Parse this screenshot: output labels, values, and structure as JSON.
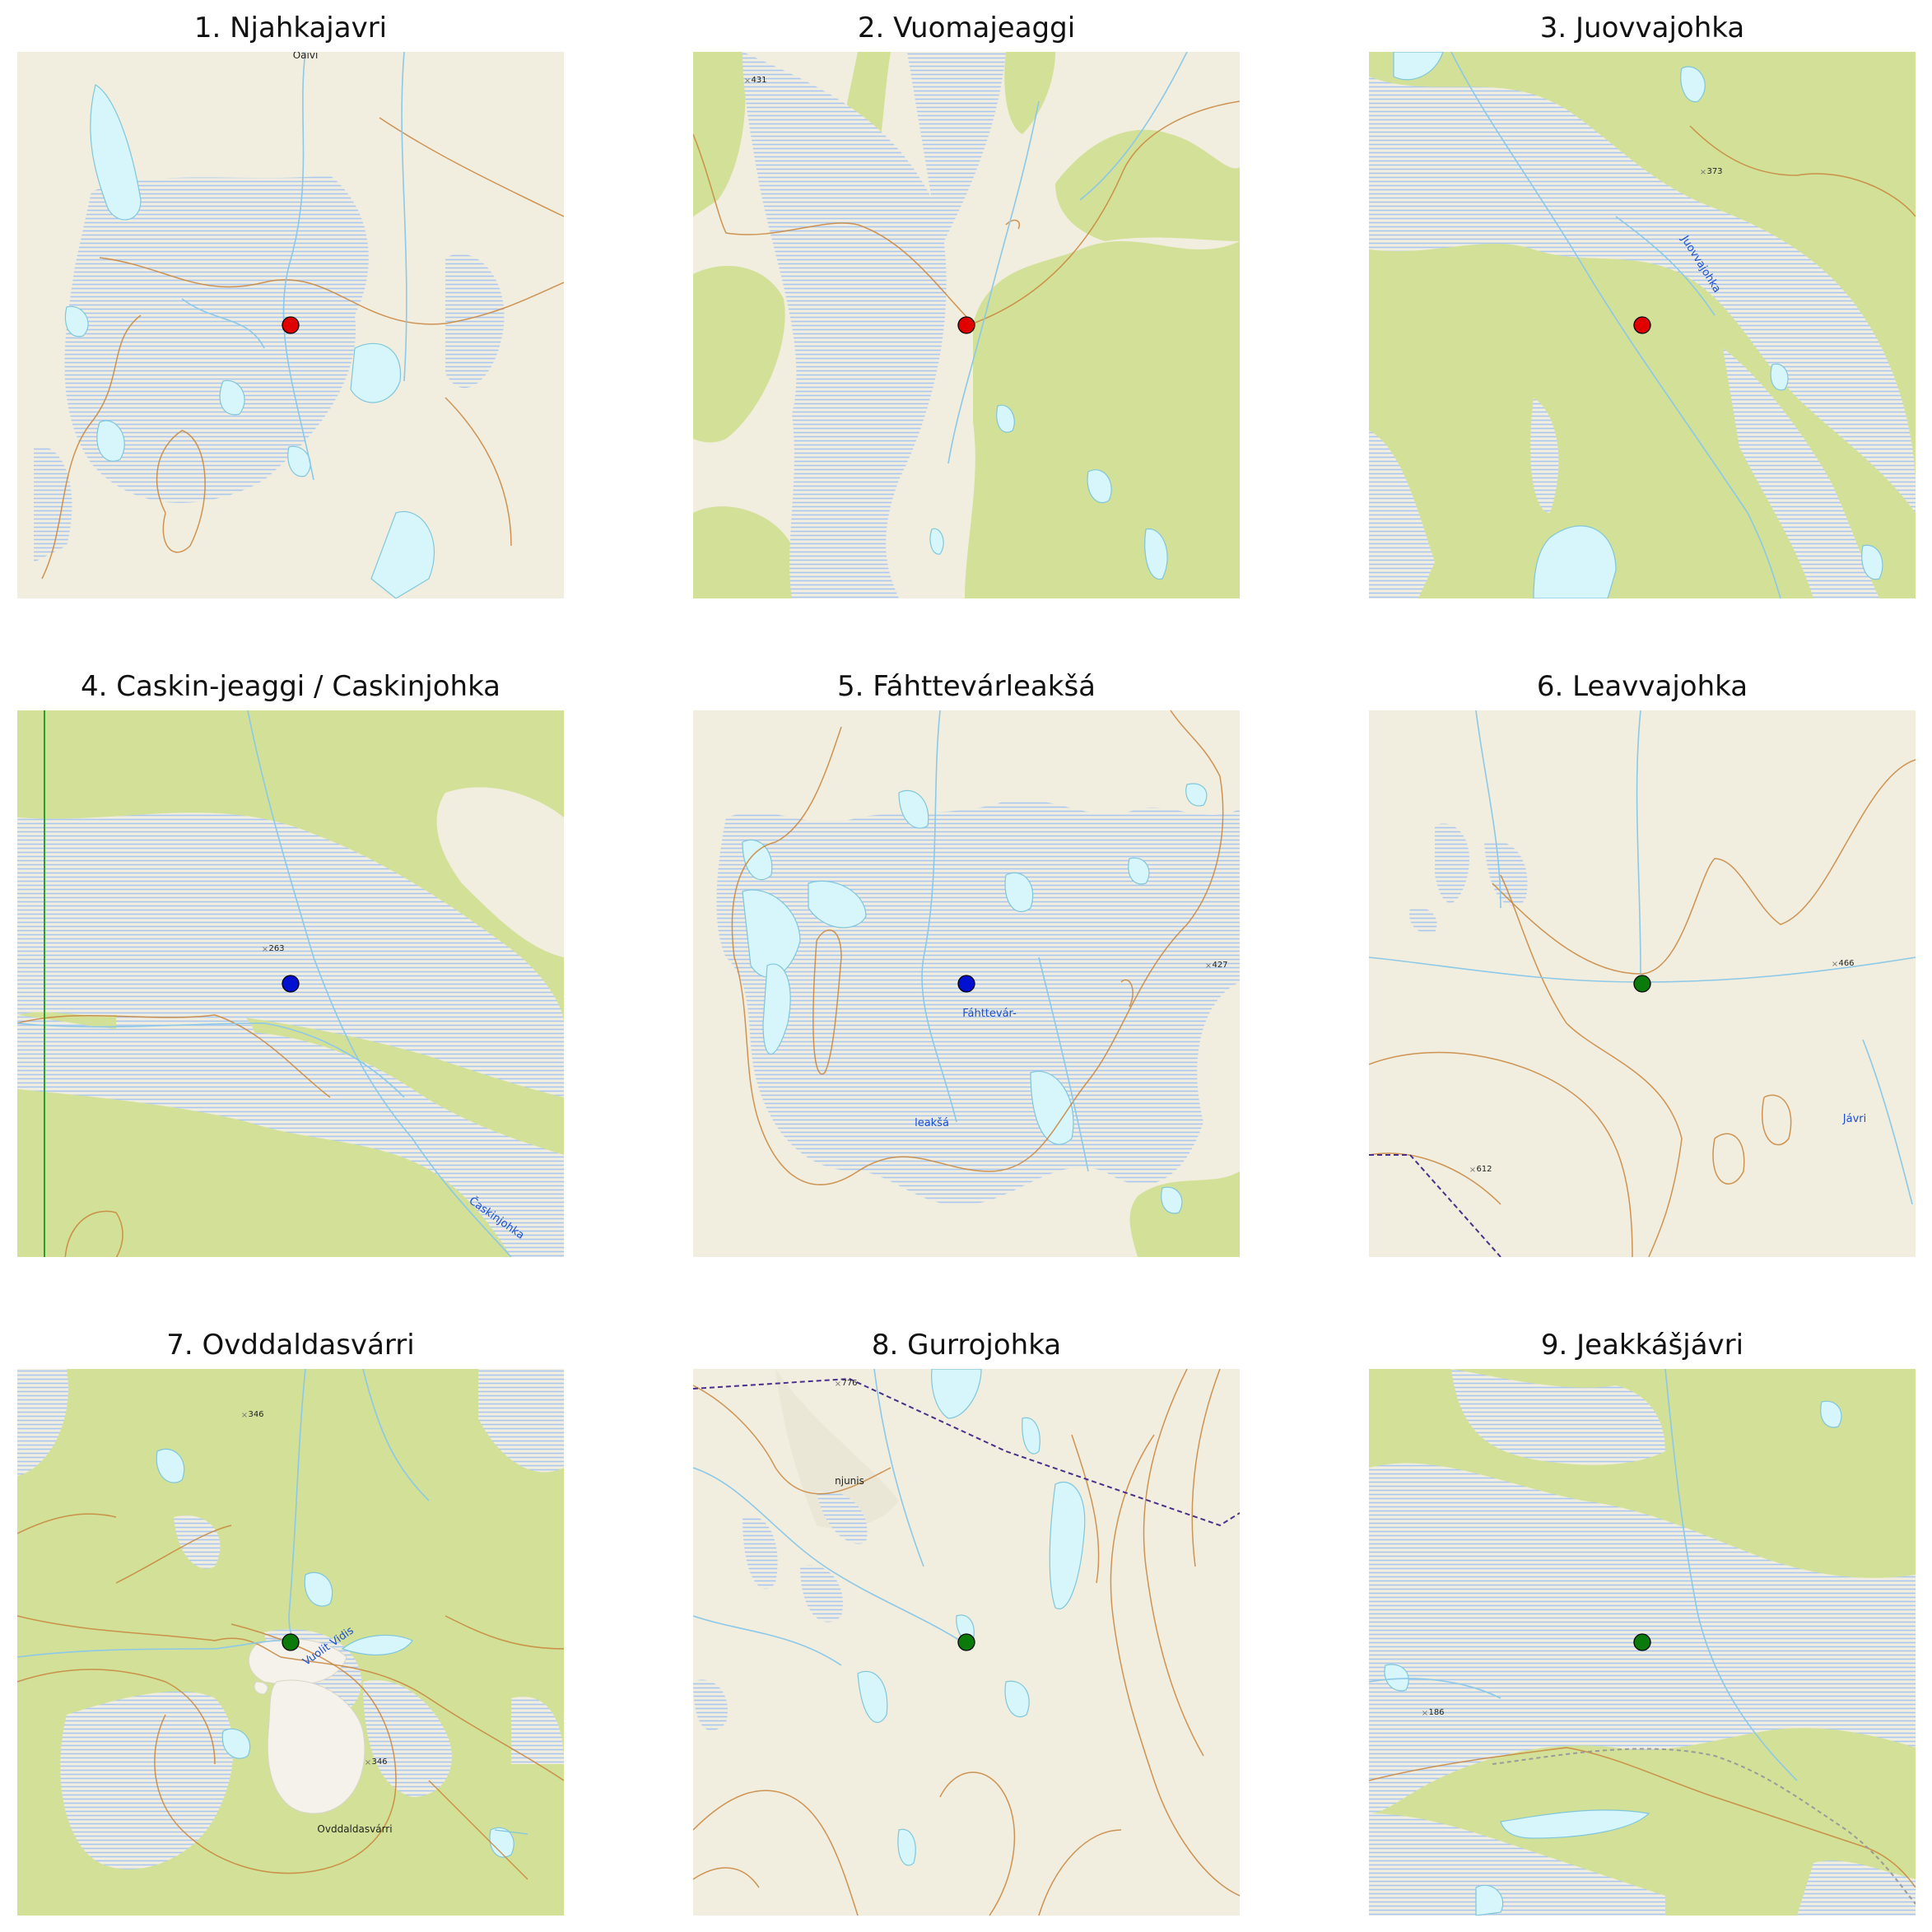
{
  "figure": {
    "marker_colors": {
      "red": "#e00000",
      "blue": "#0010d0",
      "green": "#0a7a0a"
    },
    "map_colors": {
      "open": "#f1eedf",
      "forest": "#d3e098",
      "water": "#d6f6fb",
      "bog": "#a9c7ef",
      "contour": "#c8823a",
      "stream": "#8cc8e8",
      "boundary": "#4a2f8a",
      "place_text": "#1a4fd0"
    }
  },
  "panels": [
    {
      "title": "1. Njahkajavri",
      "marker": "red",
      "base": "open",
      "labels": [
        {
          "text": "Oaivi",
          "kind": "black",
          "where": "top"
        }
      ]
    },
    {
      "title": "2. Vuomajeaggi",
      "marker": "red",
      "base": "open",
      "labels": [
        {
          "text": "431",
          "kind": "height",
          "where": "top-left"
        }
      ]
    },
    {
      "title": "3. Juovvajohka",
      "marker": "red",
      "base": "forest",
      "labels": [
        {
          "text": "373",
          "kind": "height",
          "where": "top-right"
        },
        {
          "text": "Juovvajohka",
          "kind": "blue",
          "where": "right"
        }
      ]
    },
    {
      "title": "4. Caskin-jeaggi / Caskinjohka",
      "marker": "blue",
      "base": "forest",
      "labels": [
        {
          "text": "263",
          "kind": "height",
          "where": "center"
        },
        {
          "text": "Časkinjohka",
          "kind": "blue",
          "where": "bottom-right"
        }
      ]
    },
    {
      "title": "5. Fáhttevárleakšá",
      "marker": "blue",
      "base": "open",
      "labels": [
        {
          "text": "427",
          "kind": "height",
          "where": "right"
        },
        {
          "text": "Fáhttevár-",
          "kind": "blue",
          "where": "center"
        },
        {
          "text": "leakšá",
          "kind": "blue",
          "where": "bottom-left"
        }
      ]
    },
    {
      "title": "6. Leavvajohka",
      "marker": "green",
      "base": "open",
      "labels": [
        {
          "text": "466",
          "kind": "height",
          "where": "right"
        },
        {
          "text": "Jávri",
          "kind": "blue",
          "where": "bottom-right"
        },
        {
          "text": "612",
          "kind": "height",
          "where": "bottom-left"
        }
      ]
    },
    {
      "title": "7. Ovddaldasvárri",
      "marker": "green",
      "base": "forest",
      "labels": [
        {
          "text": "346",
          "kind": "height",
          "where": "top-left"
        },
        {
          "text": "Vuolit Vidis",
          "kind": "blue",
          "where": "center"
        },
        {
          "text": "346",
          "kind": "height",
          "where": "bottom"
        },
        {
          "text": "Ovddaldasvárri",
          "kind": "black",
          "where": "bottom"
        }
      ]
    },
    {
      "title": "8. Gurrojohka",
      "marker": "green",
      "base": "open",
      "labels": [
        {
          "text": "776",
          "kind": "height",
          "where": "top"
        },
        {
          "text": "njunis",
          "kind": "black",
          "where": "top-left"
        }
      ]
    },
    {
      "title": "9. Jeakkášjávri",
      "marker": "green",
      "base": "forest",
      "labels": [
        {
          "text": "186",
          "kind": "height",
          "where": "left"
        }
      ]
    }
  ]
}
